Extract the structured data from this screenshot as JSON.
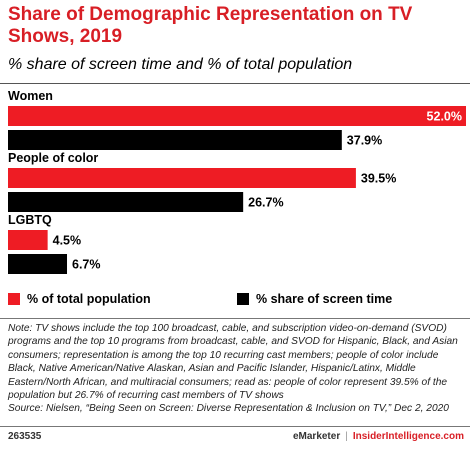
{
  "title": "Share of Demographic Representation on TV Shows, 2019",
  "subtitle": "% share of screen time and % of total population",
  "colors": {
    "population": "#ee1c24",
    "screen_time": "#000000",
    "title": "#d81e25"
  },
  "chart_data": {
    "type": "bar",
    "orientation": "horizontal",
    "categories": [
      "Women",
      "People of color",
      "LGBTQ"
    ],
    "series": [
      {
        "name": "% of total population",
        "values": [
          52.0,
          39.5,
          4.5
        ],
        "labels": [
          "52.0%",
          "39.5%",
          "4.5%"
        ]
      },
      {
        "name": "% share of screen time",
        "values": [
          37.9,
          26.7,
          6.7
        ],
        "labels": [
          "37.9%",
          "26.7%",
          "6.7%"
        ]
      }
    ],
    "xlim": [
      0,
      52.0
    ],
    "grid": false,
    "legend_position": "bottom"
  },
  "legend": {
    "population": "% of total population",
    "screen_time": "% share of screen time"
  },
  "note": "Note: TV shows include the top 100 broadcast, cable, and subscription video-on-demand (SVOD) programs and the top 10 programs from broadcast, cable, and SVOD for Hispanic, Black, and Asian consumers; representation is among the top 10 recurring cast members; people of color include Black, Native American/Native Alaskan, Asian and Pacific Islander, Hispanic/Latinx, Middle Eastern/North African, and multiracial consumers; read as: people of color represent 39.5% of the population but 26.7% of recurring cast members of TV shows",
  "source": "Source: Nielsen, “Being Seen on Screen: Diverse Representation & Inclusion on TV,” Dec 2, 2020",
  "footer": {
    "chart_id": "263535",
    "brand": "eMarketer",
    "site": "InsiderIntelligence.com"
  }
}
